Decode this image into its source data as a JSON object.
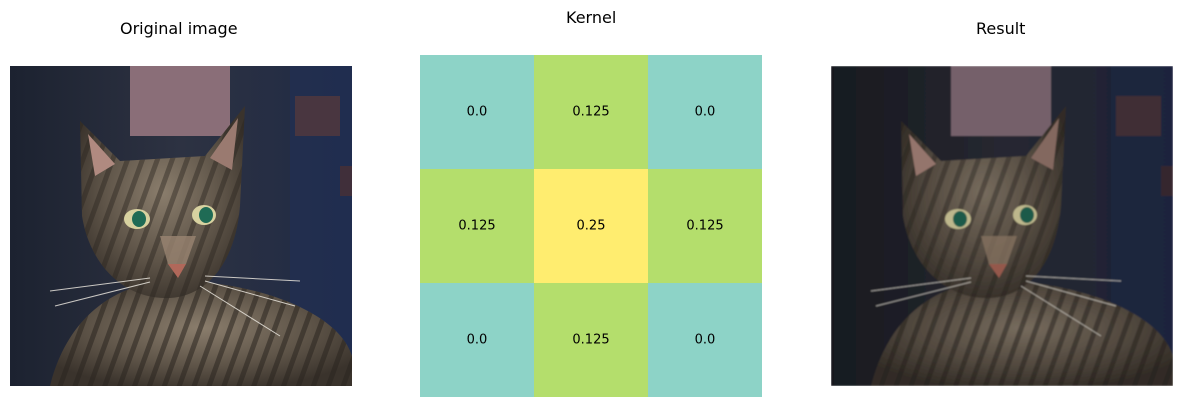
{
  "panels": {
    "left_title": "Original image",
    "center_title": "Kernel",
    "right_title": "Result"
  },
  "chart_data": {
    "type": "heatmap",
    "title": "Kernel",
    "rows": 3,
    "cols": 3,
    "values": [
      [
        0.0,
        0.125,
        0.0
      ],
      [
        0.125,
        0.25,
        0.125
      ],
      [
        0.0,
        0.125,
        0.0
      ]
    ],
    "labels": [
      [
        "0.0",
        "0.125",
        "0.0"
      ],
      [
        "0.125",
        "0.25",
        "0.125"
      ],
      [
        "0.0",
        "0.125",
        "0.0"
      ]
    ],
    "colors": {
      "0.0": "#8dd3c7",
      "0.125": "#b4de6c",
      "0.25": "#ffed6f"
    },
    "axes": "off"
  },
  "images": {
    "original": "tabby-cat-photo",
    "result": "tabby-cat-photo-blurred"
  }
}
